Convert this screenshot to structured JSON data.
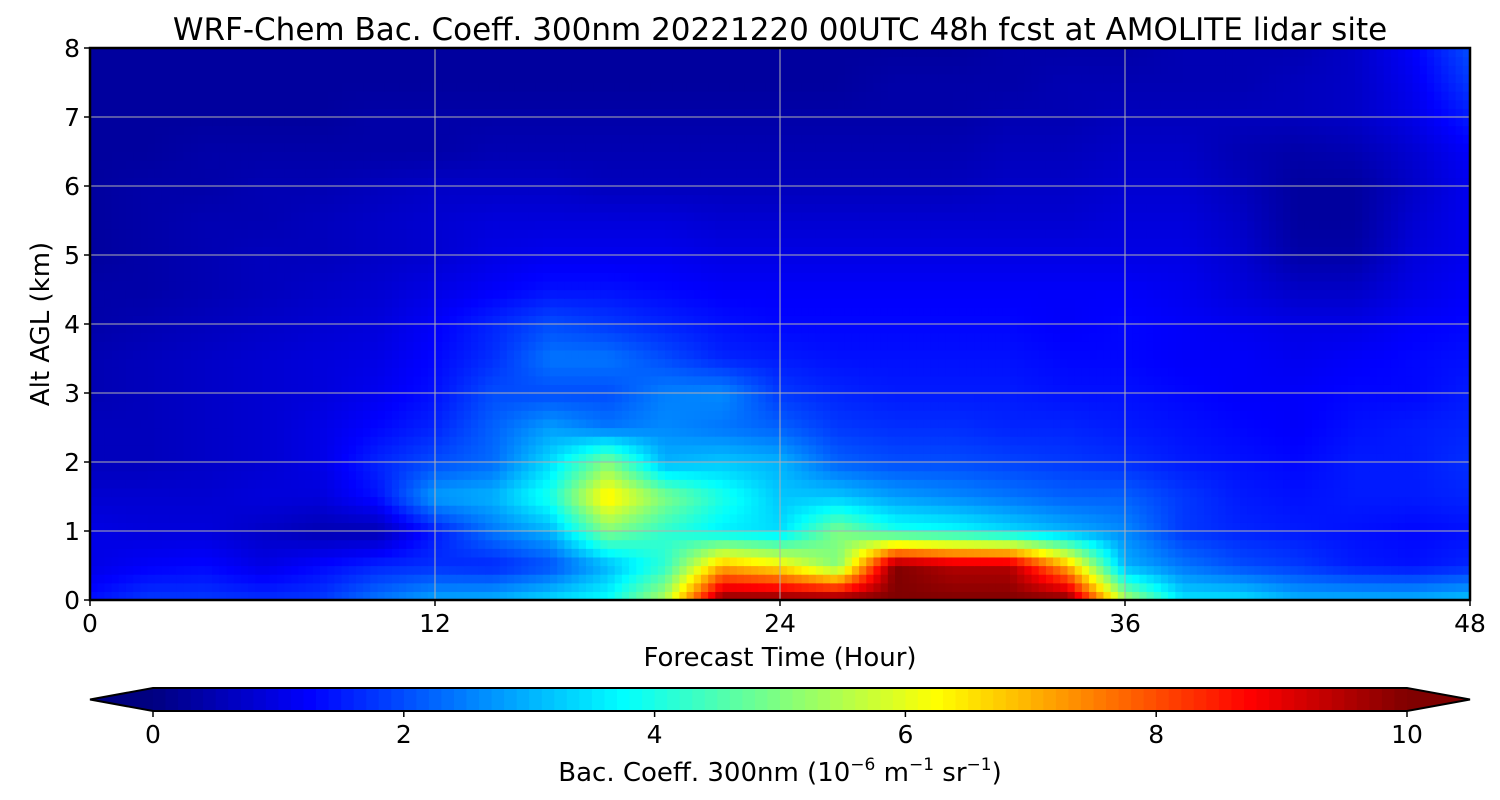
{
  "chart_data": {
    "type": "heatmap",
    "title": "WRF-Chem Bac. Coeff. 300nm  20221220 00UTC 48h fcst at AMOLITE lidar site",
    "xlabel": "Forecast Time (Hour)",
    "ylabel": "Alt AGL (km)",
    "xlim": [
      0,
      48
    ],
    "ylim": [
      0,
      8
    ],
    "xticks": [
      "0",
      "12",
      "24",
      "36",
      "48"
    ],
    "yticks": [
      "0",
      "1",
      "2",
      "3",
      "4",
      "5",
      "6",
      "7",
      "8"
    ],
    "grid": true,
    "colormap": "jet",
    "colorbar": {
      "orientation": "horizontal",
      "placement": "bottom",
      "extend": "both",
      "range": [
        0,
        10
      ],
      "ticks": [
        "0",
        "2",
        "4",
        "6",
        "8",
        "10"
      ],
      "label_main": "Bac. Coeff. 300nm  (10",
      "label_exp1": "−6",
      "label_mid": " m",
      "label_exp2": "−1",
      "label_mid2": " sr",
      "label_exp3": "−1",
      "label_end": ")"
    },
    "x": [
      0,
      2,
      4,
      6,
      8,
      10,
      12,
      14,
      16,
      18,
      20,
      22,
      24,
      26,
      28,
      30,
      32,
      34,
      36,
      38,
      40,
      42,
      44,
      46,
      48
    ],
    "y": [
      0,
      0.5,
      1,
      1.5,
      2,
      2.5,
      3,
      3.5,
      4,
      4.5,
      5,
      5.5,
      6,
      6.5,
      7,
      7.5,
      8
    ],
    "z": [
      [
        1.4,
        1.8,
        1.8,
        1.7,
        1.8,
        2.4,
        2.9,
        3.0,
        3.4,
        3.8,
        5.5,
        10,
        10,
        10,
        10,
        10,
        10,
        10,
        5.5,
        3.5,
        3.5,
        3.0,
        3.0,
        3.0,
        3.2
      ],
      [
        1.0,
        1.2,
        1.3,
        1.0,
        1.3,
        1.6,
        1.7,
        1.6,
        2.0,
        3.0,
        4.2,
        7.0,
        6.4,
        5.0,
        10,
        9.5,
        9.5,
        7.0,
        3.0,
        2.4,
        2.0,
        1.8,
        1.5,
        1.4,
        1.6
      ],
      [
        1.0,
        0.9,
        0.9,
        0.7,
        0.5,
        0.5,
        1.5,
        2.4,
        3.0,
        5.0,
        4.2,
        3.6,
        3.4,
        5.0,
        4.0,
        3.8,
        3.4,
        3.0,
        2.6,
        1.8,
        1.6,
        1.5,
        1.4,
        1.3,
        1.4
      ],
      [
        0.8,
        0.8,
        0.8,
        0.9,
        0.9,
        1.4,
        2.8,
        3.0,
        4.0,
        6.5,
        5.0,
        4.0,
        3.2,
        3.2,
        2.8,
        2.6,
        2.4,
        2.2,
        2.2,
        1.8,
        1.5,
        1.4,
        1.5,
        1.5,
        1.6
      ],
      [
        0.6,
        0.6,
        0.7,
        0.8,
        1.0,
        1.6,
        2.0,
        2.3,
        3.4,
        5.0,
        3.0,
        3.2,
        3.0,
        2.2,
        2.0,
        2.0,
        1.9,
        1.8,
        1.7,
        1.5,
        1.4,
        1.3,
        1.5,
        1.5,
        1.7
      ],
      [
        0.6,
        0.6,
        0.7,
        0.8,
        1.0,
        1.3,
        1.6,
        2.2,
        2.8,
        2.4,
        2.6,
        2.4,
        2.2,
        1.8,
        1.7,
        1.7,
        1.6,
        1.6,
        1.5,
        1.4,
        1.3,
        1.2,
        1.4,
        1.5,
        1.6
      ],
      [
        0.5,
        0.6,
        0.7,
        0.8,
        0.9,
        1.1,
        1.4,
        2.0,
        2.0,
        2.0,
        2.5,
        2.6,
        1.8,
        1.6,
        1.5,
        1.5,
        1.5,
        1.4,
        1.4,
        1.3,
        1.2,
        1.2,
        1.3,
        1.3,
        1.5
      ],
      [
        0.5,
        0.6,
        0.7,
        0.8,
        0.9,
        1.0,
        1.3,
        1.7,
        2.4,
        2.4,
        2.0,
        1.6,
        1.5,
        1.4,
        1.4,
        1.4,
        1.4,
        1.3,
        1.3,
        1.2,
        1.2,
        1.1,
        1.2,
        1.3,
        1.4
      ],
      [
        0.4,
        0.5,
        0.6,
        0.7,
        0.8,
        0.9,
        1.2,
        1.6,
        2.0,
        1.8,
        1.6,
        1.4,
        1.3,
        1.3,
        1.3,
        1.3,
        1.3,
        1.2,
        1.3,
        1.2,
        1.1,
        1.0,
        1.0,
        1.2,
        1.3
      ],
      [
        0.4,
        0.4,
        0.5,
        0.6,
        0.7,
        0.8,
        1.0,
        1.2,
        1.4,
        1.4,
        1.3,
        1.2,
        1.2,
        1.2,
        1.2,
        1.2,
        1.2,
        1.2,
        1.2,
        1.1,
        0.9,
        0.7,
        0.7,
        1.0,
        1.2
      ],
      [
        0.3,
        0.4,
        0.5,
        0.6,
        0.6,
        0.7,
        0.8,
        1.0,
        1.1,
        1.1,
        1.1,
        1.0,
        1.0,
        1.0,
        1.0,
        1.0,
        1.0,
        1.0,
        1.0,
        1.0,
        0.8,
        0.4,
        0.4,
        0.9,
        1.1
      ],
      [
        0.3,
        0.4,
        0.5,
        0.5,
        0.6,
        0.7,
        0.8,
        0.9,
        0.9,
        0.9,
        0.9,
        0.8,
        0.8,
        0.8,
        0.8,
        0.8,
        0.8,
        0.8,
        0.9,
        0.9,
        0.7,
        0.3,
        0.3,
        0.8,
        1.1
      ],
      [
        0.3,
        0.4,
        0.4,
        0.5,
        0.5,
        0.6,
        0.7,
        0.7,
        0.7,
        0.6,
        0.6,
        0.6,
        0.6,
        0.6,
        0.6,
        0.6,
        0.7,
        0.7,
        0.8,
        0.8,
        0.6,
        0.3,
        0.3,
        0.7,
        1.1
      ],
      [
        0.3,
        0.3,
        0.4,
        0.4,
        0.4,
        0.4,
        0.4,
        0.5,
        0.5,
        0.5,
        0.5,
        0.5,
        0.5,
        0.5,
        0.5,
        0.5,
        0.6,
        0.6,
        0.7,
        0.7,
        0.5,
        0.4,
        0.5,
        0.8,
        1.2
      ],
      [
        0.3,
        0.3,
        0.3,
        0.3,
        0.3,
        0.4,
        0.4,
        0.4,
        0.4,
        0.4,
        0.4,
        0.4,
        0.4,
        0.4,
        0.4,
        0.4,
        0.5,
        0.5,
        0.6,
        0.6,
        0.6,
        0.6,
        0.7,
        1.0,
        1.5
      ],
      [
        0.3,
        0.3,
        0.3,
        0.3,
        0.3,
        0.3,
        0.3,
        0.3,
        0.3,
        0.3,
        0.3,
        0.3,
        0.3,
        0.3,
        0.4,
        0.4,
        0.4,
        0.5,
        0.5,
        0.5,
        0.5,
        0.6,
        0.7,
        1.1,
        1.8
      ],
      [
        0.3,
        0.3,
        0.3,
        0.3,
        0.3,
        0.3,
        0.3,
        0.3,
        0.3,
        0.3,
        0.3,
        0.3,
        0.3,
        0.3,
        0.3,
        0.3,
        0.4,
        0.4,
        0.4,
        0.5,
        0.5,
        0.5,
        0.7,
        1.2,
        2.0
      ]
    ]
  }
}
